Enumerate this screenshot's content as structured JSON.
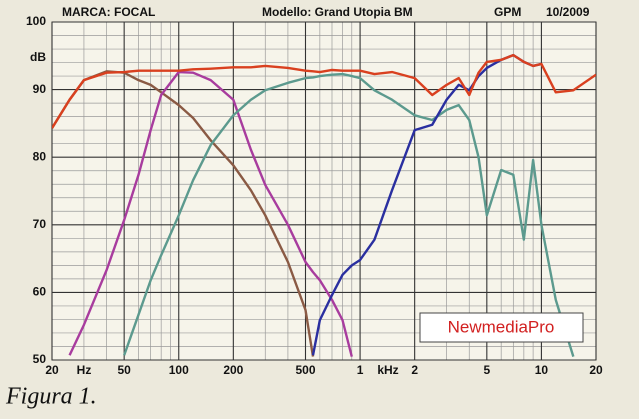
{
  "chart_data": {
    "type": "line",
    "brand": "MARCA: FOCAL",
    "model": "Modello: Grand Utopia BM",
    "source": "GPM",
    "date": "10/2009",
    "ylabel": "dB",
    "x_unit_low": "Hz",
    "x_unit_high": "kHz",
    "watermark": "NewmediaPro",
    "caption": "Figura 1.",
    "log_x": true,
    "grid": true,
    "xlim": [
      20,
      20000
    ],
    "ylim": [
      50,
      100
    ],
    "xticks": [
      20,
      50,
      100,
      200,
      500,
      {
        "value": 1000,
        "label": "1"
      },
      {
        "value": 2000,
        "label": "2"
      },
      {
        "value": 5000,
        "label": "5"
      },
      {
        "value": 10000,
        "label": "10"
      },
      {
        "value": 20000,
        "label": "20"
      }
    ],
    "yticks": [
      50,
      60,
      70,
      80,
      90,
      100
    ],
    "x_minor_ticks": [
      30,
      40,
      60,
      70,
      80,
      90,
      300,
      400,
      600,
      700,
      800,
      900,
      3000,
      4000,
      6000,
      7000,
      8000,
      9000
    ],
    "y_minor_ticks": [
      52,
      54,
      56,
      58,
      62,
      64,
      66,
      68,
      72,
      74,
      76,
      78,
      82,
      84,
      86,
      88,
      92,
      94,
      96,
      98
    ],
    "x": [
      20,
      25,
      30,
      40,
      50,
      60,
      70,
      80,
      100,
      120,
      150,
      200,
      250,
      300,
      400,
      500,
      550,
      600,
      700,
      800,
      900,
      1000,
      1200,
      1500,
      2000,
      2500,
      3000,
      3500,
      4000,
      4500,
      5000,
      6000,
      7000,
      8000,
      9000,
      10000,
      12000,
      15000,
      20000
    ],
    "series": [
      {
        "color": "#8a5a44",
        "values": [
          84.3,
          88.5,
          91.4,
          92.7,
          92.5,
          91.4,
          90.7,
          89.6,
          87.7,
          85.8,
          82.5,
          78.8,
          75.1,
          71.4,
          64.5,
          57.4,
          50.5,
          null,
          null,
          null,
          null,
          null,
          null,
          null,
          null,
          null,
          null,
          null,
          null,
          null,
          null,
          null,
          null,
          null,
          null,
          null,
          null,
          null,
          null
        ]
      },
      {
        "color": "#a83c9e",
        "values": [
          null,
          50.7,
          55.2,
          63.3,
          70.7,
          77.4,
          84.0,
          89.2,
          92.6,
          92.5,
          91.4,
          88.5,
          81.1,
          75.9,
          70.0,
          64.5,
          63,
          61.8,
          58.9,
          55.9,
          50.5,
          null,
          null,
          null,
          null,
          null,
          null,
          null,
          null,
          null,
          null,
          null,
          null,
          null,
          null,
          null,
          null,
          null,
          null
        ]
      },
      {
        "color": "#5c9a8e",
        "values": [
          null,
          null,
          null,
          null,
          50.7,
          56.7,
          61.8,
          65.5,
          71.4,
          76.6,
          81.8,
          86.2,
          88.5,
          89.9,
          91.0,
          91.7,
          91.8,
          92.0,
          92.2,
          92.3,
          92.0,
          91.7,
          89.9,
          88.5,
          86.2,
          85.5,
          87.0,
          87.7,
          85.5,
          80,
          71.4,
          78.1,
          77.4,
          67.8,
          79.6,
          70,
          58.9,
          50.5,
          null
        ]
      },
      {
        "color": "#2a2fa0",
        "values": [
          null,
          null,
          null,
          null,
          null,
          null,
          null,
          null,
          null,
          null,
          null,
          null,
          null,
          null,
          null,
          null,
          50.7,
          55.9,
          59.6,
          62.6,
          64,
          64.8,
          67.8,
          75.1,
          84,
          84.8,
          88.5,
          90.7,
          89.9,
          92,
          93.2,
          94.4,
          95.1,
          94.1,
          93.5,
          93.8,
          null,
          null,
          null
        ]
      },
      {
        "color": "#d9401f",
        "values": [
          84.3,
          88.5,
          91.4,
          92.5,
          92.6,
          92.8,
          92.8,
          92.8,
          92.8,
          93.0,
          93.1,
          93.3,
          93.3,
          93.5,
          93.2,
          92.8,
          92.7,
          92.6,
          92.9,
          92.8,
          92.8,
          92.8,
          92.3,
          92.6,
          91.7,
          89.2,
          90.7,
          91.7,
          89.2,
          92.5,
          94.1,
          94.4,
          95.1,
          94.1,
          93.5,
          93.8,
          89.6,
          89.9,
          92.2
        ]
      }
    ]
  }
}
